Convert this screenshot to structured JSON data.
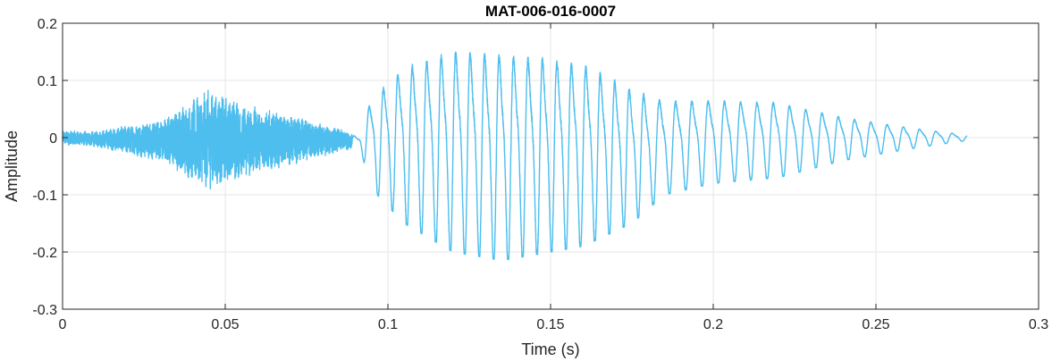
{
  "chart_data": {
    "type": "line",
    "title": "MAT-006-016-0007",
    "xlabel": "Time (s)",
    "ylabel": "Amplitude",
    "xlim": [
      0,
      0.3
    ],
    "ylim": [
      -0.3,
      0.2
    ],
    "xticks": [
      0,
      0.05,
      0.1,
      0.15,
      0.2,
      0.25,
      0.3
    ],
    "xtick_labels": [
      "0",
      "0.05",
      "0.1",
      "0.15",
      "0.2",
      "0.25",
      "0.3"
    ],
    "yticks": [
      -0.3,
      -0.2,
      -0.1,
      0,
      0.1,
      0.2
    ],
    "ytick_labels": [
      "-0.3",
      "-0.2",
      "-0.1",
      "0",
      "0.1",
      "0.2"
    ],
    "grid": true,
    "series": [
      {
        "color": "#4DBEEE",
        "description_of_shape": "speech-like waveform",
        "envelope": {
          "t": [
            0.0,
            0.01,
            0.03,
            0.045,
            0.06,
            0.075,
            0.088,
            0.091,
            0.095,
            0.105,
            0.12,
            0.135,
            0.15,
            0.16,
            0.175,
            0.185,
            0.2,
            0.22,
            0.24,
            0.26,
            0.278
          ],
          "pos": [
            0.012,
            0.01,
            0.03,
            0.08,
            0.05,
            0.03,
            0.01,
            0.0,
            0.08,
            0.14,
            0.175,
            0.17,
            0.16,
            0.15,
            0.1,
            0.075,
            0.075,
            0.07,
            0.04,
            0.02,
            0.005
          ],
          "neg": [
            -0.012,
            -0.015,
            -0.04,
            -0.09,
            -0.06,
            -0.04,
            -0.02,
            -0.01,
            -0.09,
            -0.15,
            -0.2,
            -0.215,
            -0.2,
            -0.19,
            -0.15,
            -0.1,
            -0.08,
            -0.07,
            -0.04,
            -0.02,
            -0.005
          ]
        },
        "t_end": 0.278
      }
    ]
  }
}
